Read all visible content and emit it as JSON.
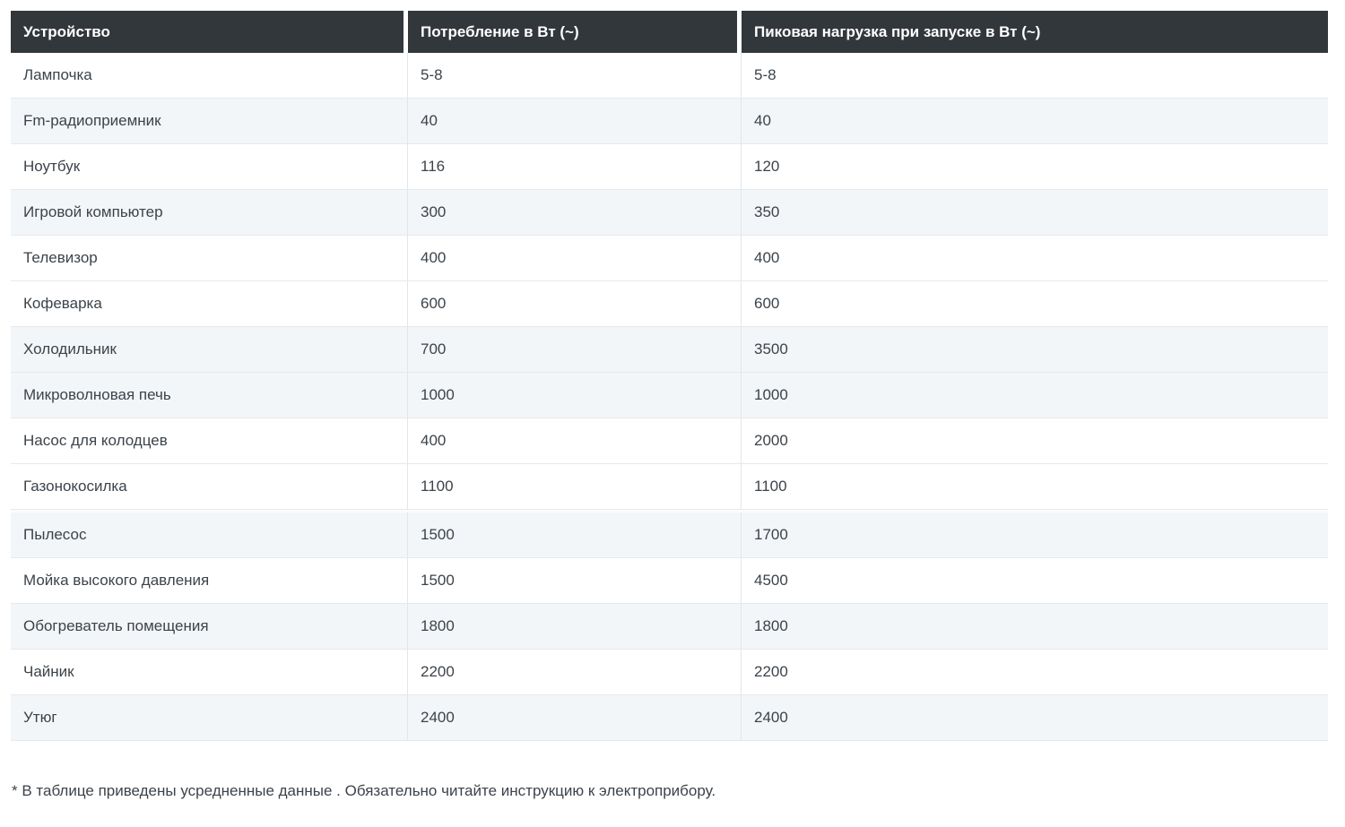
{
  "table": {
    "columns": [
      "Устройство",
      "Потребление в Вт (~)",
      "Пиковая нагрузка при запуске в Вт (~)"
    ],
    "rows": [
      {
        "device": "Лампочка",
        "consumption": "5-8",
        "peak": "5-8",
        "shaded": false,
        "section_break": false
      },
      {
        "device": "Fm-радиоприемник",
        "consumption": "40",
        "peak": "40",
        "shaded": true,
        "section_break": false
      },
      {
        "device": "Ноутбук",
        "consumption": "116",
        "peak": "120",
        "shaded": false,
        "section_break": false
      },
      {
        "device": "Игровой компьютер",
        "consumption": "300",
        "peak": "350",
        "shaded": true,
        "section_break": false
      },
      {
        "device": "Телевизор",
        "consumption": "400",
        "peak": "400",
        "shaded": false,
        "section_break": false
      },
      {
        "device": "Кофеварка",
        "consumption": "600",
        "peak": "600",
        "shaded": false,
        "section_break": false
      },
      {
        "device": "Холодильник",
        "consumption": "700",
        "peak": "3500",
        "shaded": true,
        "section_break": false
      },
      {
        "device": "Микроволновая печь",
        "consumption": "1000",
        "peak": "1000",
        "shaded": true,
        "section_break": false
      },
      {
        "device": "Насос для колодцев",
        "consumption": "400",
        "peak": "2000",
        "shaded": false,
        "section_break": false
      },
      {
        "device": "Газонокосилка",
        "consumption": "1100",
        "peak": "1100",
        "shaded": false,
        "section_break": false
      },
      {
        "device": "Пылесос",
        "consumption": "1500",
        "peak": "1700",
        "shaded": true,
        "section_break": true
      },
      {
        "device": "Мойка высокого давления",
        "consumption": "1500",
        "peak": "4500",
        "shaded": false,
        "section_break": false
      },
      {
        "device": "Обогреватель помещения",
        "consumption": "1800",
        "peak": "1800",
        "shaded": true,
        "section_break": false
      },
      {
        "device": "Чайник",
        "consumption": "2200",
        "peak": "2200",
        "shaded": false,
        "section_break": false
      },
      {
        "device": "Утюг",
        "consumption": "2400",
        "peak": "2400",
        "shaded": true,
        "section_break": false
      }
    ]
  },
  "footnote": "* В таблице приведены усредненные данные . Обязательно читайте инструкцию к электроприбору.",
  "colors": {
    "header_bg": "#32373c",
    "header_text": "#ffffff",
    "shaded_row_bg": "#f3f6f8",
    "row_border": "#e6e9ec",
    "body_text": "#3c434a"
  },
  "chart_data": {
    "type": "table",
    "title": "",
    "columns": [
      "Устройство",
      "Потребление в Вт (~)",
      "Пиковая нагрузка при запуске в Вт (~)"
    ],
    "categories": [
      "Лампочка",
      "Fm-радиоприемник",
      "Ноутбук",
      "Игровой компьютер",
      "Телевизор",
      "Кофеварка",
      "Холодильник",
      "Микроволновая печь",
      "Насос для колодцев",
      "Газонокосилка",
      "Пылесос",
      "Мойка высокого давления",
      "Обогреватель помещения",
      "Чайник",
      "Утюг"
    ],
    "series": [
      {
        "name": "Потребление в Вт (~)",
        "values": [
          "5-8",
          40,
          116,
          300,
          400,
          600,
          700,
          1000,
          400,
          1100,
          1500,
          1500,
          1800,
          2200,
          2400
        ]
      },
      {
        "name": "Пиковая нагрузка при запуске в Вт (~)",
        "values": [
          "5-8",
          40,
          120,
          350,
          400,
          600,
          3500,
          1000,
          2000,
          1100,
          1700,
          4500,
          1800,
          2200,
          2400
        ]
      }
    ],
    "annotations": [
      "* В таблице приведены усредненные данные . Обязательно читайте инструкцию к электроприбору."
    ]
  }
}
